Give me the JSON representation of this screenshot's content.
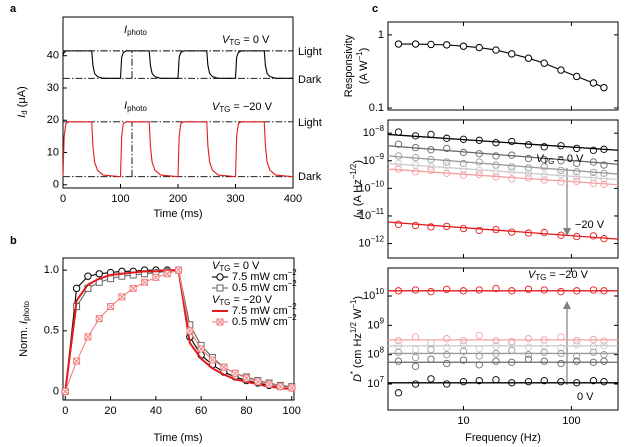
{
  "chart_data": [
    {
      "type": "line",
      "panel": "a",
      "xlabel": "Time (ms)",
      "ylabel": [
        [
          {
            "i": "I"
          },
          {
            "sub": "d"
          },
          " (μA)"
        ]
      ],
      "x": [
        0,
        2,
        5,
        10,
        50,
        52,
        55,
        60,
        70,
        100,
        102,
        105,
        110,
        150,
        152,
        155,
        160,
        170,
        200,
        202,
        205,
        210,
        250,
        252,
        255,
        260,
        270,
        300,
        302,
        305,
        310,
        350,
        352,
        355,
        360,
        370,
        400
      ],
      "series": [
        {
          "color": "#000000",
          "values": [
            40,
            41,
            41.5,
            41.5,
            41.5,
            37,
            34.5,
            33.5,
            33,
            33,
            39.5,
            41,
            41.5,
            41.5,
            37,
            34.5,
            33.5,
            33,
            33,
            39.5,
            41,
            41.5,
            41.5,
            37,
            34.5,
            33.5,
            33,
            33,
            39.5,
            41,
            41.5,
            41.5,
            37,
            34.5,
            33.5,
            33,
            33
          ]
        },
        {
          "color": "#e31a1c",
          "values": [
            2.5,
            15,
            19,
            19.5,
            19.5,
            12,
            7,
            4.5,
            3,
            2.5,
            15,
            19,
            19.5,
            19.5,
            12,
            7,
            4.5,
            3,
            2.5,
            15,
            19,
            19.5,
            19.5,
            12,
            7,
            4.5,
            3,
            2.5,
            15,
            19,
            19.5,
            19.5,
            12,
            7,
            4.5,
            3,
            2.5
          ]
        }
      ],
      "xlim": [
        0,
        400
      ],
      "xticks": [
        0,
        100,
        200,
        300,
        400
      ],
      "ylim": [
        -1,
        52
      ],
      "yticks": [
        0,
        10,
        20,
        30,
        40
      ],
      "hlines": [
        41.5,
        33,
        19.5,
        2.5
      ],
      "vlines": [
        {
          "x": 120,
          "y": [
            33,
            41.5
          ]
        },
        {
          "x": 120,
          "y": [
            2.5,
            19.5
          ]
        }
      ],
      "annotations": [
        {
          "text": [
            {
              "i": "V"
            },
            {
              "sub": "TG"
            },
            " = 0 V"
          ],
          "color": "#000000"
        },
        {
          "text": [
            {
              "i": "V"
            },
            {
              "sub": "TG"
            },
            " = −20 V"
          ],
          "color": "#e31a1c"
        },
        {
          "text": "Light",
          "color": "#808080"
        },
        {
          "text": "Dark",
          "color": "#808080"
        },
        {
          "text": "Light",
          "color": "#808080"
        },
        {
          "text": "Dark",
          "color": "#808080"
        },
        {
          "text": [
            {
              "i": "I"
            },
            {
              "sub": "photo"
            }
          ],
          "color": "#555555"
        },
        {
          "text": [
            {
              "i": "I"
            },
            {
              "sub": "photo"
            }
          ],
          "color": "#555555"
        }
      ]
    },
    {
      "type": "line",
      "panel": "b",
      "xlabel": "Time (ms)",
      "ylabel": [
        [
          "Norm. ",
          {
            "i": "I"
          },
          {
            "sub": "photo"
          }
        ]
      ],
      "x": [
        0,
        5,
        10,
        15,
        20,
        25,
        30,
        35,
        40,
        45,
        50,
        55,
        60,
        65,
        70,
        75,
        80,
        85,
        90,
        95,
        100
      ],
      "series": [
        {
          "name": [
            "7.5 mW cm",
            {
              "sup": "−2"
            }
          ],
          "color": "#000000",
          "marker": "circle",
          "values": [
            0,
            0.85,
            0.95,
            0.97,
            0.98,
            0.99,
            0.99,
            1,
            1,
            1,
            1,
            0.45,
            0.3,
            0.22,
            0.16,
            0.12,
            0.09,
            0.07,
            0.05,
            0.04,
            0.03
          ]
        },
        {
          "name": [
            "0.5 mW cm",
            {
              "sup": "−2"
            }
          ],
          "color": "#666666",
          "marker": "square",
          "values": [
            0,
            0.7,
            0.85,
            0.9,
            0.93,
            0.95,
            0.96,
            0.97,
            0.98,
            0.99,
            1,
            0.55,
            0.38,
            0.28,
            0.2,
            0.15,
            0.12,
            0.09,
            0.07,
            0.05,
            0.04
          ]
        },
        {
          "name": [
            "7.5 mW cm",
            {
              "sup": "−2"
            }
          ],
          "color": "#e31a1c",
          "marker": "none",
          "values": [
            0,
            0.75,
            0.88,
            0.93,
            0.96,
            0.97,
            0.98,
            0.99,
            0.99,
            1,
            1,
            0.4,
            0.27,
            0.19,
            0.14,
            0.1,
            0.08,
            0.06,
            0.04,
            0.03,
            0.02
          ]
        },
        {
          "name": [
            "0.5 mW cm",
            {
              "sup": "−2"
            }
          ],
          "color": "#f08080",
          "marker": "xsquare",
          "values": [
            0,
            0.25,
            0.45,
            0.6,
            0.7,
            0.78,
            0.85,
            0.9,
            0.94,
            0.97,
            1,
            0.5,
            0.35,
            0.26,
            0.2,
            0.15,
            0.11,
            0.08,
            0.06,
            0.04,
            0.03
          ]
        }
      ],
      "legend_titles": [
        [
          {
            "i": "V"
          },
          {
            "sub": "TG"
          },
          " = 0 V"
        ],
        [
          {
            "i": "V"
          },
          {
            "sub": "TG"
          },
          " = −20 V"
        ]
      ],
      "xlim": [
        -1,
        101
      ],
      "xticks": [
        0,
        20,
        40,
        60,
        80,
        100
      ],
      "ylim": [
        -0.07,
        1.1
      ],
      "yticks": [
        0,
        0.5,
        {
          "value": 1,
          "label": "1.0"
        }
      ]
    },
    {
      "type": "line",
      "panel": "c",
      "ylabel": [
        "Responsivity",
        [
          "(A W",
          {
            "sup": "−1"
          },
          ")"
        ]
      ],
      "log_x": true,
      "log_y": true,
      "x": [
        2.5,
        3.6,
        5,
        7,
        10,
        14,
        20,
        28,
        40,
        56,
        80,
        112,
        160,
        200
      ],
      "series": [
        {
          "color": "#000000",
          "marker": "circle",
          "values": [
            0.75,
            0.75,
            0.74,
            0.73,
            0.7,
            0.67,
            0.62,
            0.55,
            0.48,
            0.41,
            0.33,
            0.27,
            0.22,
            0.19
          ]
        }
      ],
      "xlim": [
        2,
        270
      ],
      "ylim": [
        0.094,
        1.5
      ],
      "yticks": [
        0.1,
        1
      ]
    },
    {
      "type": "scatter",
      "ylabel": [
        [
          {
            "i": "I"
          },
          {
            "sub": "N"
          },
          " (A Hz",
          {
            "sup": "−1/2"
          },
          ")"
        ]
      ],
      "log_x": true,
      "log_y": true,
      "x": [
        2.5,
        3.6,
        5,
        7,
        10,
        14,
        20,
        28,
        40,
        56,
        80,
        112,
        160,
        200
      ],
      "series": [
        {
          "color": "#000000",
          "values": [
            1.1e-08,
            8e-09,
            9e-09,
            6.5e-09,
            6e-09,
            5.5e-09,
            4.5e-09,
            5e-09,
            3.8e-09,
            3.2e-09,
            3.5e-09,
            2.8e-09,
            2.4e-09,
            2.6e-09
          ],
          "fit": [
            9e-09,
            2.4e-09
          ]
        },
        {
          "color": "#666666",
          "values": [
            4e-09,
            3e-09,
            2.5e-09,
            2.8e-09,
            2e-09,
            1.8e-09,
            1.5e-09,
            1.6e-09,
            1.2e-09,
            1.1e-09,
            1e-09,
            8e-10,
            9e-10,
            7e-10
          ],
          "fit": [
            3.5e-09,
            7.5e-10
          ]
        },
        {
          "color": "#999999",
          "values": [
            1.5e-09,
            1.3e-09,
            1.1e-09,
            9e-10,
            8e-10,
            9e-10,
            7e-10,
            6e-10,
            5.5e-10,
            6e-10,
            4.5e-10,
            4e-10,
            3.8e-10,
            3.5e-10
          ],
          "fit": [
            1.5e-09,
            3.3e-10
          ]
        },
        {
          "color": "#cccccc",
          "values": [
            8e-10,
            7e-10,
            6e-10,
            6.5e-10,
            5e-10,
            4.5e-10,
            4e-10,
            4.2e-10,
            3.5e-10,
            3e-10,
            3.2e-10,
            2.6e-10,
            2.5e-10,
            2.2e-10
          ],
          "fit": [
            8e-10,
            2.1e-10
          ]
        },
        {
          "color": "#f4a0a0",
          "values": [
            5e-10,
            4e-10,
            4.5e-10,
            3.5e-10,
            3e-10,
            3.2e-10,
            2.6e-10,
            2.2e-10,
            2.4e-10,
            2e-10,
            1.7e-10,
            1.8e-10,
            1.5e-10,
            1.4e-10
          ],
          "fit": [
            5e-10,
            1.35e-10
          ]
        },
        {
          "color": "#e31a1c",
          "values": [
            5e-12,
            4.5e-12,
            4e-12,
            4.2e-12,
            3.5e-12,
            3e-12,
            3.2e-12,
            2.6e-12,
            2.4e-12,
            2.5e-12,
            2e-12,
            1.8e-12,
            1.9e-12,
            1.5e-12
          ],
          "fit": [
            6e-12,
            1.45e-12
          ]
        }
      ],
      "xlim": [
        2,
        270
      ],
      "ylim": [
        3e-13,
        3e-08
      ],
      "yticks": [
        {
          "value": 1e-12,
          "label": [
            "10",
            {
              "sup": "−12"
            }
          ]
        },
        {
          "value": 1e-11,
          "label": [
            "10",
            {
              "sup": "−11"
            }
          ]
        },
        {
          "value": 1e-10,
          "label": [
            "10",
            {
              "sup": "−10"
            }
          ]
        },
        {
          "value": 1e-09,
          "label": [
            "10",
            {
              "sup": "−9"
            }
          ]
        },
        {
          "value": 1e-08,
          "label": [
            "10",
            {
              "sup": "−8"
            }
          ]
        }
      ],
      "annotations": [
        {
          "text": [
            {
              "i": "V"
            },
            {
              "sub": "TG"
            },
            " = 0 V"
          ],
          "color": "#000000"
        },
        {
          "text": "−20 V",
          "color": "#e31a1c"
        }
      ]
    },
    {
      "type": "scatter",
      "xlabel": "Frequency (Hz)",
      "ylabel": [
        [
          {
            "i": "D"
          },
          {
            "sup": "*"
          },
          " (cm Hz",
          {
            "sup": "1/2"
          },
          " W",
          {
            "sup": "−1"
          },
          ")"
        ]
      ],
      "log_x": true,
      "log_y": true,
      "x": [
        2.5,
        3.6,
        5,
        7,
        10,
        14,
        20,
        28,
        40,
        56,
        80,
        112,
        160,
        200
      ],
      "series": [
        {
          "color": "#e31a1c",
          "values": [
            15000000000.0,
            16000000000.0,
            14000000000.0,
            17000000000.0,
            15000000000.0,
            16000000000.0,
            18000000000.0,
            15000000000.0,
            17000000000.0,
            16000000000.0,
            14000000000.0,
            15000000000.0,
            16000000000.0,
            15000000000.0
          ],
          "fit": [
            15000000000.0,
            15000000000.0
          ]
        },
        {
          "color": "#f4a0a0",
          "values": [
            300000000.0,
            400000000.0,
            250000000.0,
            350000000.0,
            300000000.0,
            450000000.0,
            300000000.0,
            280000000.0,
            350000000.0,
            320000000.0,
            400000000.0,
            300000000.0,
            330000000.0,
            290000000.0
          ],
          "fit": [
            320000000.0,
            320000000.0
          ]
        },
        {
          "color": "#cccccc",
          "values": [
            200000000.0,
            150000000.0,
            250000000.0,
            180000000.0,
            220000000.0,
            160000000.0,
            200000000.0,
            240000000.0,
            180000000.0,
            200000000.0,
            170000000.0,
            220000000.0,
            190000000.0,
            200000000.0
          ],
          "fit": [
            200000000.0,
            200000000.0
          ]
        },
        {
          "color": "#999999",
          "values": [
            120000000.0,
            80000000.0,
            150000000.0,
            100000000.0,
            130000000.0,
            90000000.0,
            110000000.0,
            140000000.0,
            100000000.0,
            120000000.0,
            110000000.0,
            90000000.0,
            120000000.0,
            100000000.0
          ],
          "fit": [
            110000000.0,
            110000000.0
          ]
        },
        {
          "color": "#666666",
          "values": [
            60000000.0,
            40000000.0,
            70000000.0,
            50000000.0,
            65000000.0,
            45000000.0,
            60000000.0,
            55000000.0,
            70000000.0,
            60000000.0,
            50000000.0,
            60000000.0,
            55000000.0,
            60000000.0
          ],
          "fit": [
            55000000.0,
            55000000.0
          ]
        },
        {
          "color": "#000000",
          "values": [
            5000000.0,
            10000000.0,
            15000000.0,
            10000000.0,
            12000000.0,
            13000000.0,
            14000000.0,
            11000000.0,
            12000000.0,
            13000000.0,
            12000000.0,
            11000000.0,
            13000000.0,
            12000000.0
          ],
          "fit": [
            11000000.0,
            11000000.0
          ]
        }
      ],
      "xlim": [
        2,
        270
      ],
      "xticks": [
        10,
        100
      ],
      "ylim": [
        1300000.0,
        90000000000.0
      ],
      "yticks": [
        {
          "value": 10000000.0,
          "label": [
            "10",
            {
              "sup": "7"
            }
          ]
        },
        {
          "value": 100000000.0,
          "label": [
            "10",
            {
              "sup": "8"
            }
          ]
        },
        {
          "value": 1000000000.0,
          "label": [
            "10",
            {
              "sup": "9"
            }
          ]
        },
        {
          "value": 10000000000.0,
          "label": [
            "10",
            {
              "sup": "10"
            }
          ]
        }
      ],
      "annotations": [
        {
          "text": [
            {
              "i": "V"
            },
            {
              "sub": "TG"
            },
            " = −20 V"
          ],
          "color": "#e31a1c"
        },
        {
          "text": "0 V",
          "color": "#000000"
        }
      ]
    }
  ]
}
